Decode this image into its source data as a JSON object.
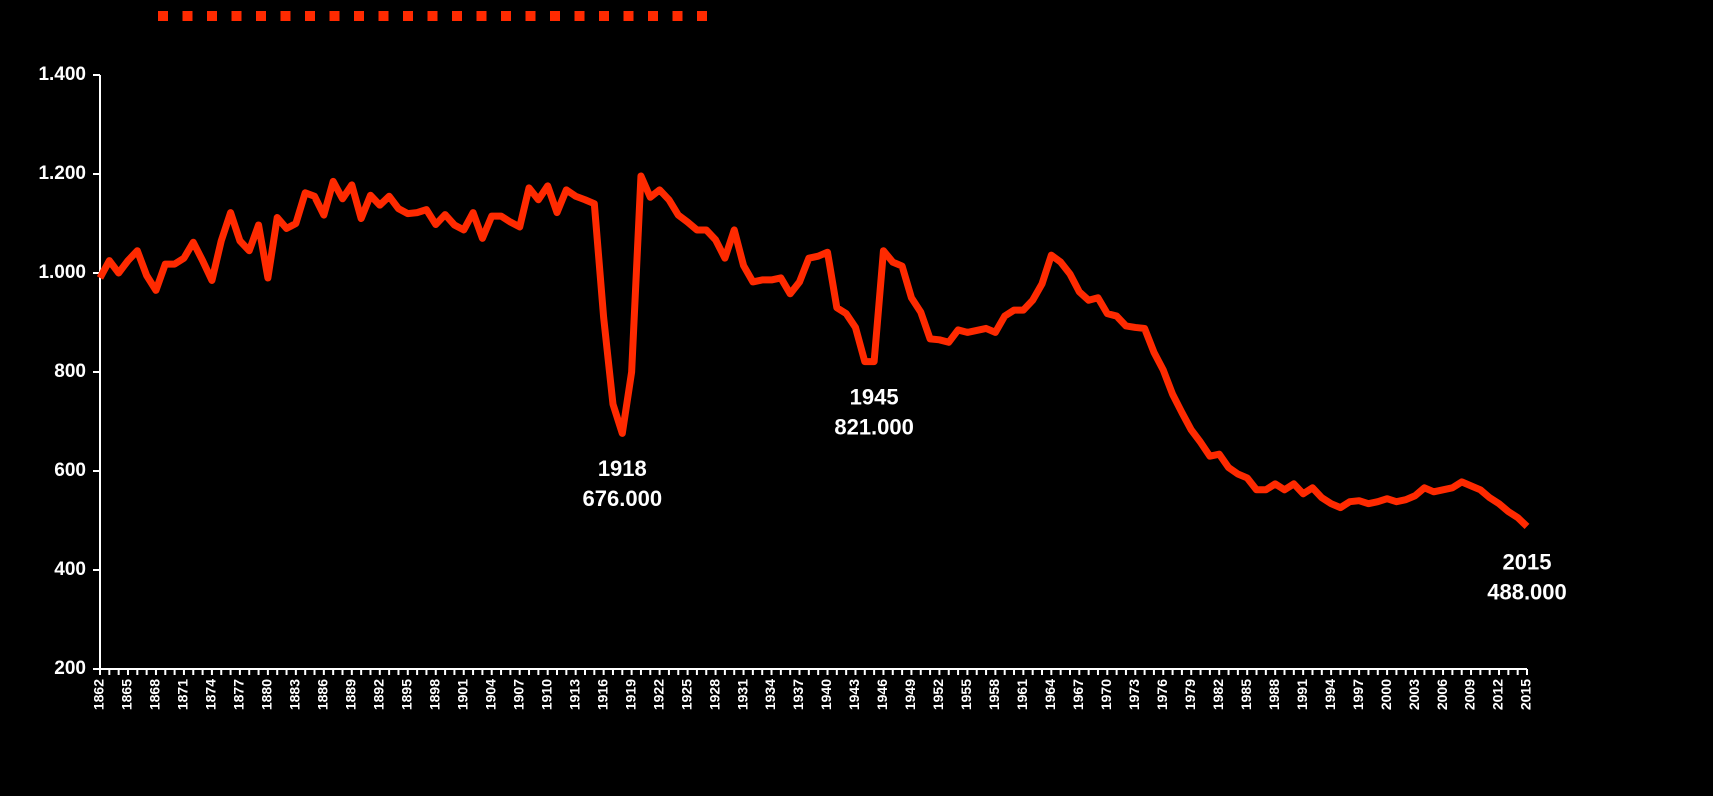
{
  "chart_data": {
    "type": "line",
    "x": [
      1862,
      1863,
      1864,
      1865,
      1866,
      1867,
      1868,
      1869,
      1870,
      1871,
      1872,
      1873,
      1874,
      1875,
      1876,
      1877,
      1878,
      1879,
      1880,
      1881,
      1882,
      1883,
      1884,
      1885,
      1886,
      1887,
      1888,
      1889,
      1890,
      1891,
      1892,
      1893,
      1894,
      1895,
      1896,
      1897,
      1898,
      1899,
      1900,
      1901,
      1902,
      1903,
      1904,
      1905,
      1906,
      1907,
      1908,
      1909,
      1910,
      1911,
      1912,
      1913,
      1914,
      1915,
      1916,
      1917,
      1918,
      1919,
      1920,
      1921,
      1922,
      1923,
      1924,
      1925,
      1926,
      1927,
      1928,
      1929,
      1930,
      1931,
      1932,
      1933,
      1934,
      1935,
      1936,
      1937,
      1938,
      1939,
      1940,
      1941,
      1942,
      1943,
      1944,
      1945,
      1946,
      1947,
      1948,
      1949,
      1950,
      1951,
      1952,
      1953,
      1954,
      1955,
      1956,
      1957,
      1958,
      1959,
      1960,
      1961,
      1962,
      1963,
      1964,
      1965,
      1966,
      1967,
      1968,
      1969,
      1970,
      1971,
      1972,
      1973,
      1974,
      1975,
      1976,
      1977,
      1978,
      1979,
      1980,
      1981,
      1982,
      1983,
      1984,
      1985,
      1986,
      1987,
      1988,
      1989,
      1990,
      1991,
      1992,
      1993,
      1994,
      1995,
      1996,
      1997,
      1998,
      1999,
      2000,
      2001,
      2002,
      2003,
      2004,
      2005,
      2006,
      2007,
      2008,
      2009,
      2010,
      2011,
      2012,
      2013,
      2014,
      2015
    ],
    "series": [
      {
        "color": "#ff2a00",
        "values": [
          990,
          1025,
          1000,
          1025,
          1045,
          995,
          965,
          1018,
          1018,
          1030,
          1062,
          1025,
          985,
          1065,
          1122,
          1065,
          1045,
          1097,
          990,
          1112,
          1090,
          1100,
          1162,
          1155,
          1117,
          1185,
          1150,
          1178,
          1110,
          1157,
          1137,
          1155,
          1130,
          1120,
          1122,
          1128,
          1098,
          1118,
          1097,
          1087,
          1122,
          1070,
          1115,
          1115,
          1103,
          1093,
          1172,
          1148,
          1176,
          1122,
          1168,
          1155,
          1148,
          1140,
          910,
          735,
          676,
          800,
          1196,
          1153,
          1168,
          1148,
          1117,
          1103,
          1087,
          1087,
          1067,
          1030,
          1087,
          1015,
          982,
          986,
          986,
          990,
          958,
          982,
          1030,
          1034,
          1042,
          930,
          918,
          890,
          821,
          821,
          1045,
          1022,
          1014,
          950,
          921,
          867,
          865,
          860,
          885,
          880,
          884,
          888,
          880,
          913,
          925,
          925,
          945,
          978,
          1036,
          1022,
          998,
          962,
          945,
          950,
          918,
          913,
          893,
          890,
          888,
          840,
          804,
          755,
          718,
          683,
          658,
          630,
          634,
          607,
          594,
          586,
          562,
          562,
          574,
          562,
          574,
          554,
          566,
          546,
          534,
          526,
          538,
          540,
          534,
          538,
          544,
          538,
          542,
          550,
          566,
          558,
          562,
          566,
          578,
          570,
          562,
          546,
          534,
          518,
          506,
          488
        ],
        "value_labels": [
          null,
          null,
          null,
          null,
          null,
          null,
          null,
          null,
          null,
          null,
          null,
          null,
          null,
          null,
          null,
          null,
          null,
          null,
          null,
          null,
          null,
          null,
          null,
          null,
          null,
          null,
          null,
          null,
          null,
          null,
          null,
          null,
          null,
          null,
          null,
          null,
          null,
          null,
          null,
          null,
          null,
          null,
          null,
          null,
          null,
          null,
          null,
          null,
          null,
          null,
          null,
          null,
          null,
          null,
          null,
          null,
          "676.000",
          null,
          null,
          null,
          null,
          null,
          null,
          null,
          null,
          null,
          null,
          null,
          null,
          null,
          null,
          null,
          null,
          null,
          null,
          null,
          null,
          null,
          null,
          null,
          null,
          null,
          null,
          "821.000",
          null,
          null,
          null,
          null,
          null,
          null,
          null,
          null,
          null,
          null,
          null,
          null,
          null,
          null,
          null,
          null,
          null,
          null,
          null,
          null,
          null,
          null,
          null,
          null,
          null,
          null,
          null,
          null,
          null,
          null,
          null,
          null,
          null,
          null,
          null,
          null,
          null,
          null,
          null,
          null,
          null,
          null,
          null,
          null,
          null,
          null,
          null,
          null,
          null,
          null,
          null,
          null,
          null,
          null,
          null,
          null,
          null,
          null,
          null,
          null,
          null,
          null,
          null,
          null,
          null,
          null,
          null,
          null,
          null,
          "488.000"
        ]
      }
    ],
    "xlim": [
      1862,
      2015
    ],
    "xticks": [
      1862,
      1865,
      1868,
      1871,
      1874,
      1877,
      1880,
      1883,
      1886,
      1889,
      1892,
      1895,
      1898,
      1901,
      1904,
      1907,
      1910,
      1913,
      1916,
      1919,
      1922,
      1925,
      1928,
      1931,
      1934,
      1937,
      1940,
      1943,
      1946,
      1949,
      1952,
      1955,
      1958,
      1961,
      1964,
      1967,
      1970,
      1973,
      1976,
      1979,
      1982,
      1985,
      1988,
      1991,
      1994,
      1997,
      2000,
      2003,
      2006,
      2009,
      2012,
      2015
    ],
    "ylim": [
      200,
      1400
    ],
    "yticks": [
      200,
      400,
      600,
      800,
      {
        "value": 1000,
        "label": "1.000"
      },
      {
        "value": 1200,
        "label": "1.200"
      },
      {
        "value": 1400,
        "label": "1.400"
      }
    ]
  }
}
